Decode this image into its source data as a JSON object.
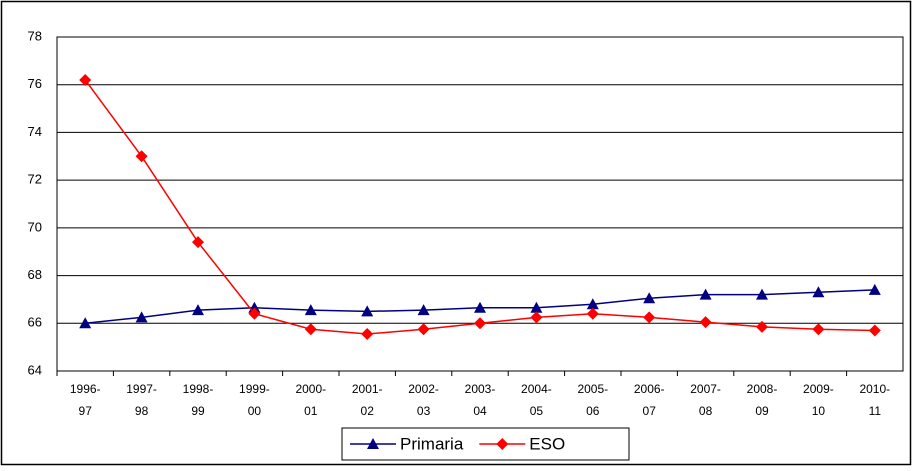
{
  "chart_data": {
    "type": "line",
    "categories": [
      "1996-97",
      "1997-98",
      "1998-99",
      "1999-00",
      "2000-01",
      "2001-02",
      "2002-03",
      "2003-04",
      "2004-05",
      "2005-06",
      "2006-07",
      "2007-08",
      "2008-09",
      "2009-10",
      "2010-11"
    ],
    "series": [
      {
        "name": "Primaria",
        "color": "#000080",
        "marker": "triangle",
        "values": [
          66.0,
          66.25,
          66.55,
          66.65,
          66.55,
          66.5,
          66.55,
          66.65,
          66.65,
          66.8,
          67.05,
          67.2,
          67.2,
          67.3,
          67.4
        ]
      },
      {
        "name": "ESO",
        "color": "#ff0000",
        "marker": "diamond",
        "values": [
          76.2,
          73.0,
          69.4,
          66.4,
          65.75,
          65.55,
          65.75,
          66.0,
          66.25,
          66.4,
          66.25,
          66.05,
          65.85,
          65.75,
          65.7
        ]
      }
    ],
    "ylim": [
      64,
      78
    ],
    "yticks": [
      64,
      66,
      68,
      70,
      72,
      74,
      76,
      78
    ],
    "grid": true,
    "legend": "bottom"
  }
}
